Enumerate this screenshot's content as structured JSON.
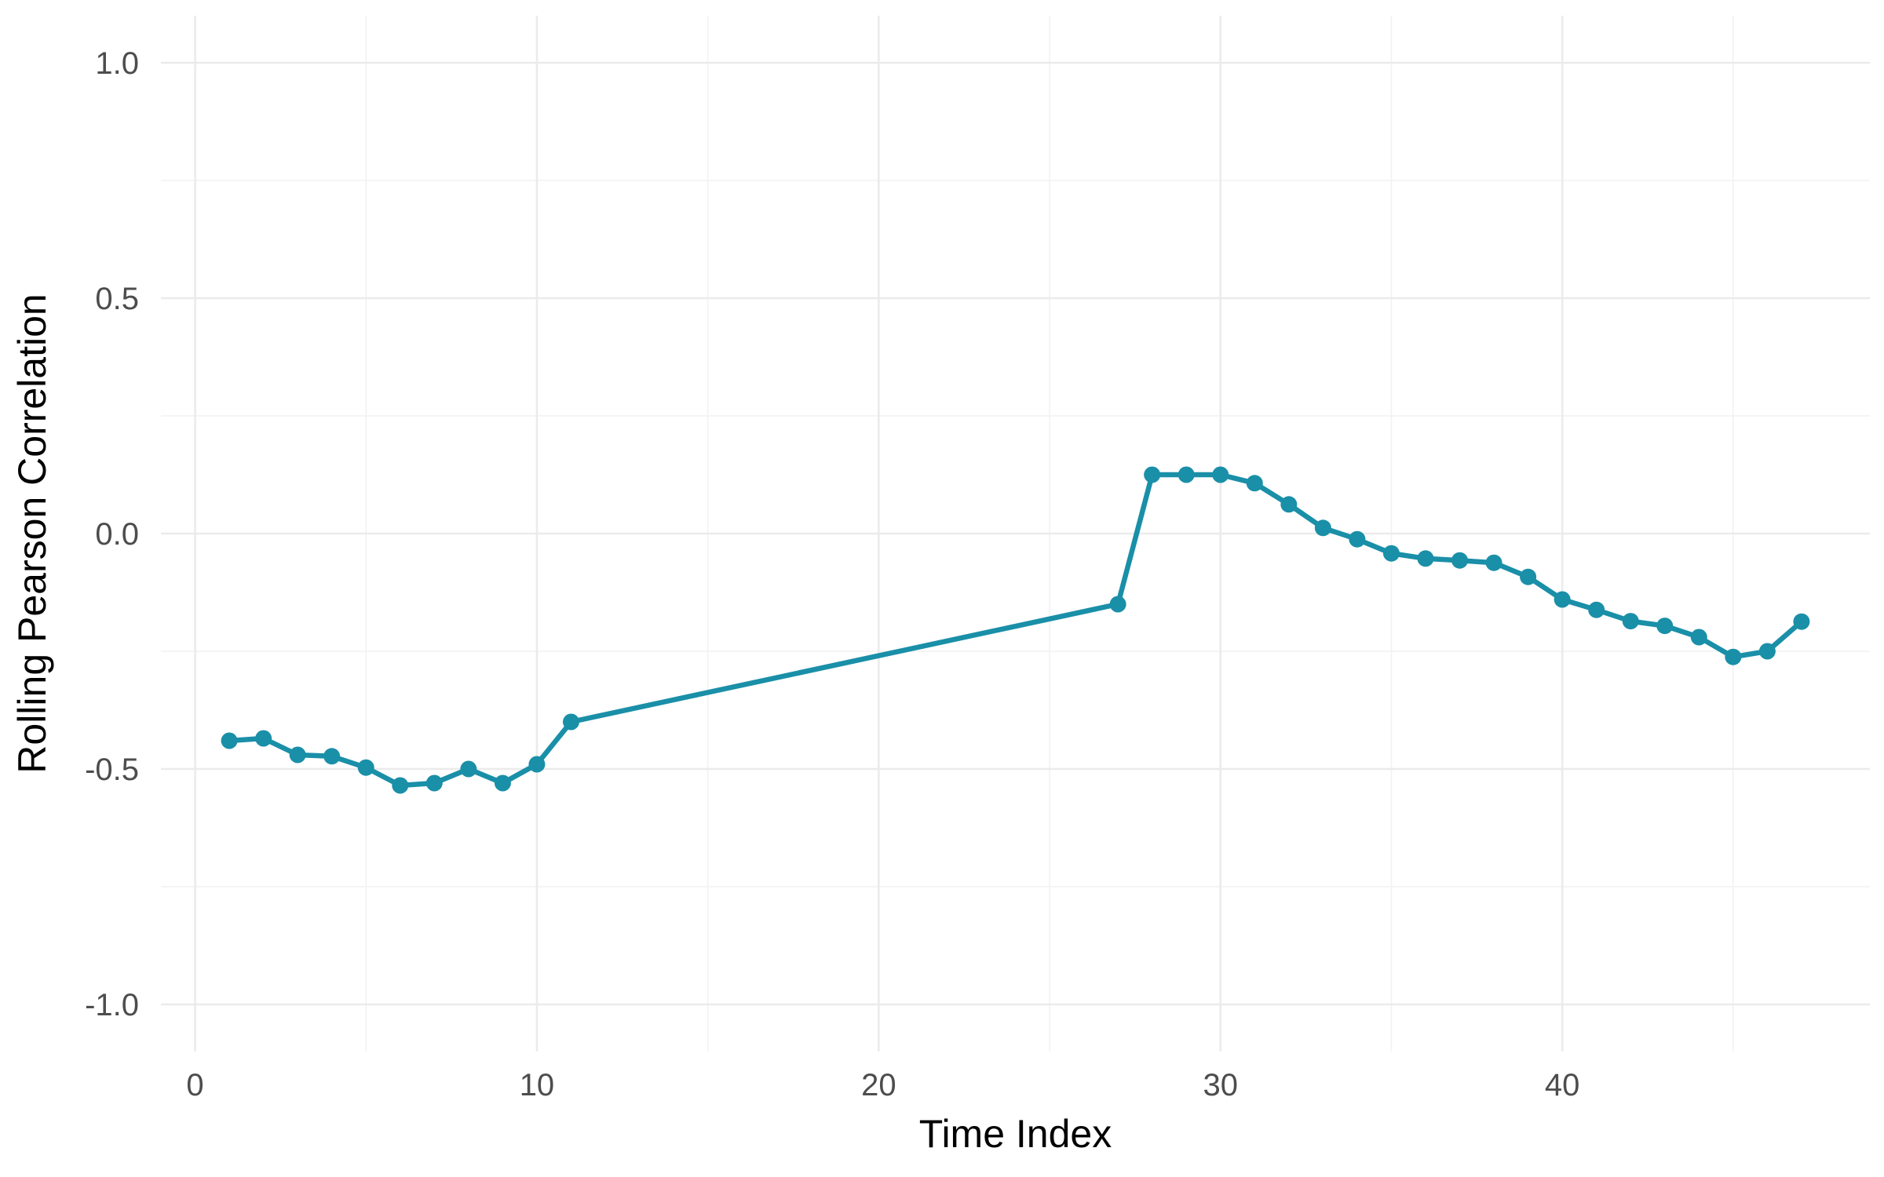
{
  "chart_data": {
    "type": "line",
    "title": "",
    "xlabel": "Time Index",
    "ylabel": "Rolling Pearson Correlation",
    "xlim": [
      -1,
      49
    ],
    "ylim": [
      -1.1,
      1.1
    ],
    "x_ticks": [
      0,
      10,
      20,
      30,
      40
    ],
    "x_tick_labels": [
      "0",
      "10",
      "20",
      "30",
      "40"
    ],
    "x_minor_ticks": [
      5,
      15,
      25,
      35,
      45
    ],
    "y_ticks": [
      -1.0,
      -0.5,
      0.0,
      0.5,
      1.0
    ],
    "y_tick_labels": [
      "-1.0",
      "-0.5",
      "0.0",
      "0.5",
      "1.0"
    ],
    "y_minor_ticks": [
      -0.75,
      -0.25,
      0.25,
      0.75
    ],
    "grid": true,
    "legend": "none",
    "color": "#1a8fa8",
    "series": [
      {
        "x": [
          1,
          2,
          3,
          4,
          5,
          6,
          7,
          8,
          9,
          10,
          11,
          27,
          28,
          29,
          30,
          31,
          32,
          33,
          34,
          35,
          36,
          37,
          38,
          39,
          40,
          41,
          42,
          43,
          44,
          45,
          46,
          47
        ],
        "values": [
          -0.44,
          -0.435,
          -0.47,
          -0.473,
          -0.497,
          -0.535,
          -0.53,
          -0.5,
          -0.53,
          -0.49,
          -0.4,
          -0.15,
          0.125,
          0.125,
          0.125,
          0.107,
          0.062,
          0.012,
          -0.012,
          -0.042,
          -0.053,
          -0.057,
          -0.062,
          -0.092,
          -0.14,
          -0.162,
          -0.186,
          -0.196,
          -0.22,
          -0.262,
          -0.25,
          -0.187
        ]
      }
    ]
  }
}
